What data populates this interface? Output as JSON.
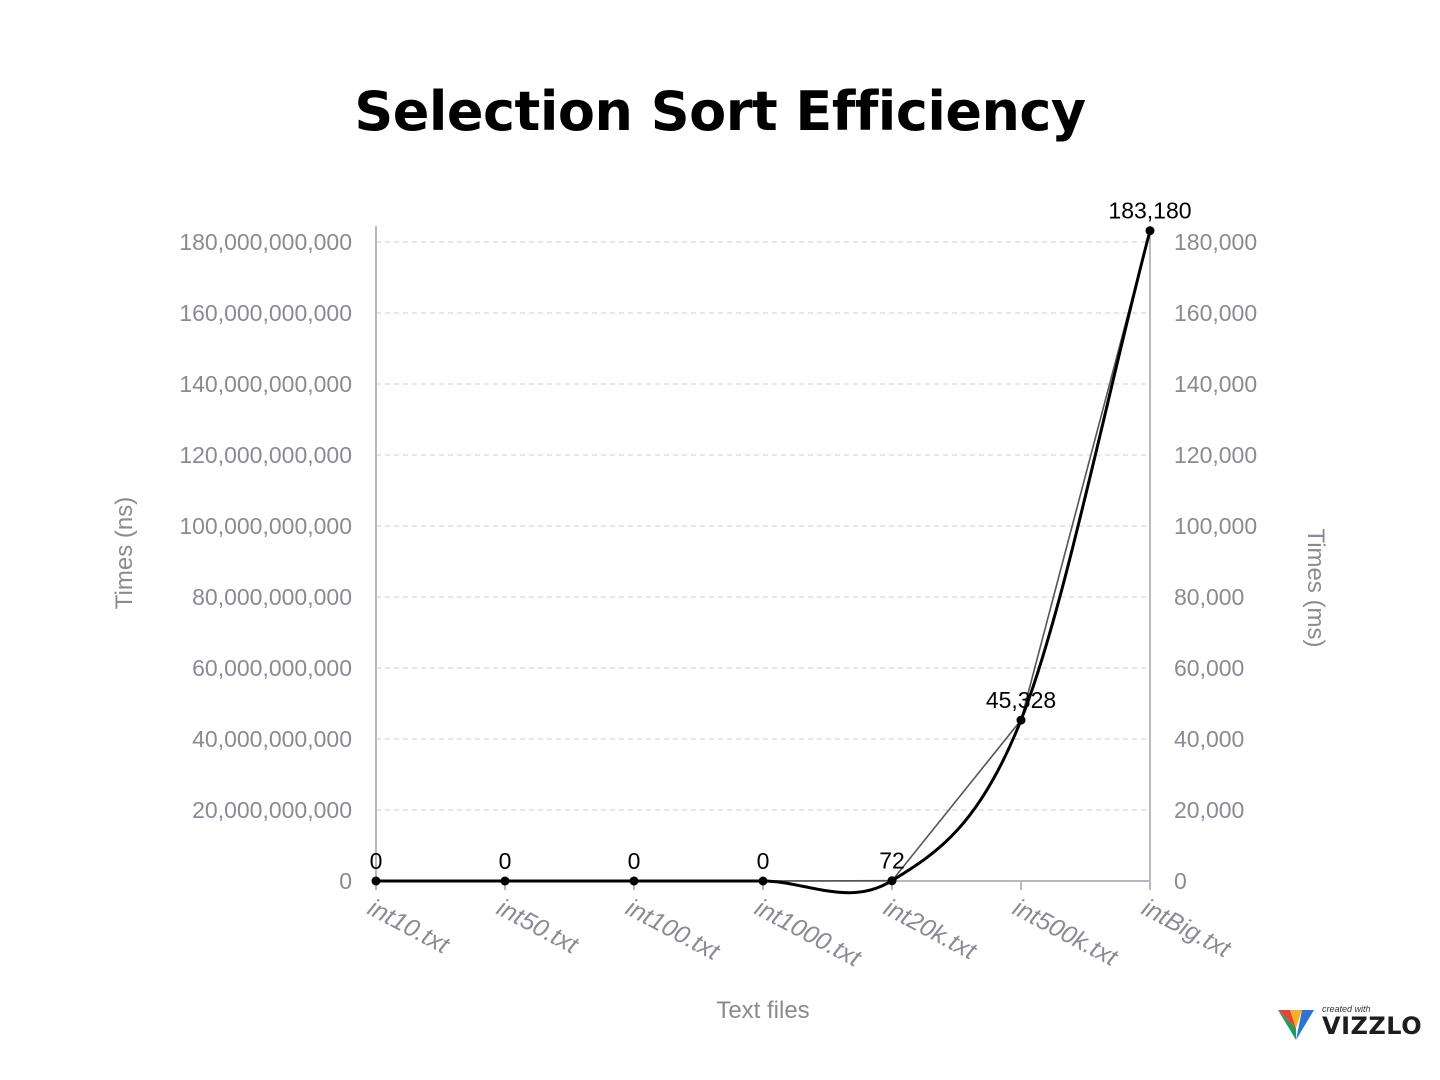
{
  "title": "Selection Sort Efficiency",
  "chart_data": {
    "type": "line",
    "title": "Selection Sort Efficiency",
    "xlabel": "Text files",
    "ylabel_left": "Times (ns)",
    "ylabel_right": "Times (ms)",
    "categories": [
      "int10.txt",
      "int50.txt",
      "int100.txt",
      "int1000.txt",
      "int20k.txt",
      "int500k.txt",
      "intBig.txt"
    ],
    "series": [
      {
        "axis": "right",
        "values": [
          0,
          0,
          0,
          0,
          72,
          45328,
          183180
        ],
        "data_labels": [
          "0",
          "0",
          "0",
          "0",
          "72",
          "45,328",
          "183,180"
        ],
        "color": "#000000",
        "smooth": true
      },
      {
        "axis": "left",
        "values": [
          0,
          0,
          0,
          0,
          72000000,
          45328000000,
          183180000000
        ],
        "color": "#000000",
        "smooth": false
      }
    ],
    "ylim_left": [
      0,
      180000000000
    ],
    "ylim_right": [
      0,
      180000
    ],
    "left_ticks": [
      "0",
      "20,000,000,000",
      "40,000,000,000",
      "60,000,000,000",
      "80,000,000,000",
      "100,000,000,000",
      "120,000,000,000",
      "140,000,000,000",
      "160,000,000,000",
      "180,000,000,000"
    ],
    "right_ticks": [
      "0",
      "20,000",
      "40,000",
      "60,000",
      "80,000",
      "100,000",
      "120,000",
      "140,000",
      "160,000",
      "180,000"
    ],
    "grid": true
  },
  "logo": {
    "small_text": "created with",
    "word": "VIZZLO"
  }
}
